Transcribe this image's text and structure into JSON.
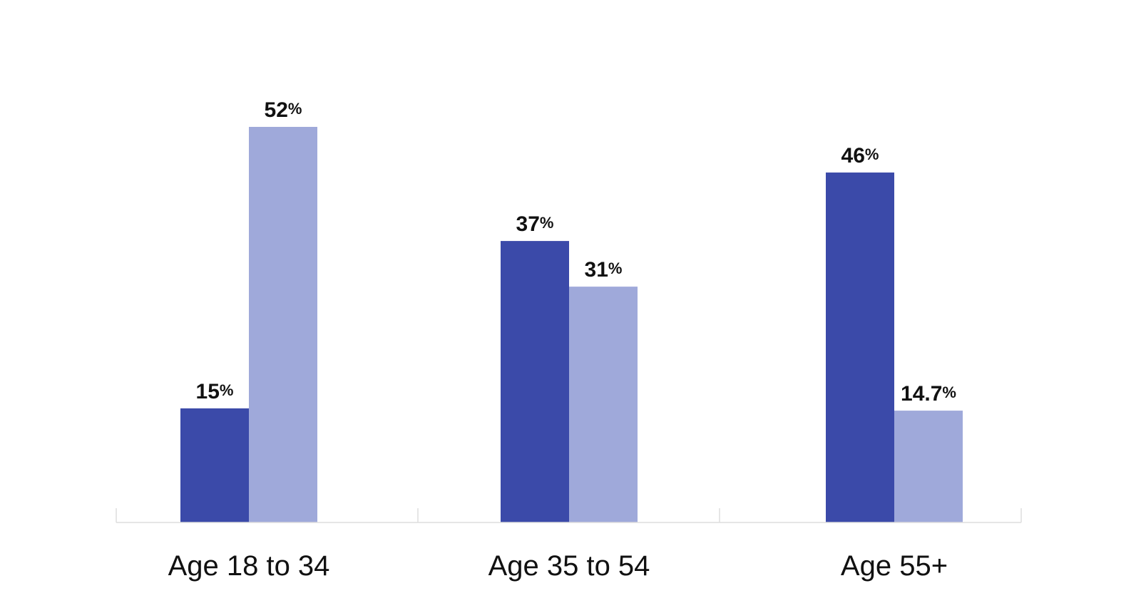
{
  "chart_data": {
    "type": "bar",
    "categories": [
      "Age 18 to 34",
      "Age 35 to 54",
      "Age 55+"
    ],
    "series": [
      {
        "values": [
          15,
          37,
          46
        ],
        "color": "#3b4aa9",
        "labels": [
          "15",
          "37",
          "46"
        ]
      },
      {
        "values": [
          52,
          31,
          14.7
        ],
        "color": "#9fa9da",
        "labels": [
          "52",
          "31",
          "14.7"
        ]
      }
    ],
    "value_suffix": "%",
    "ylim": [
      0,
      52
    ],
    "grid": false,
    "legend": "none",
    "axis_color": "#dddddd"
  }
}
